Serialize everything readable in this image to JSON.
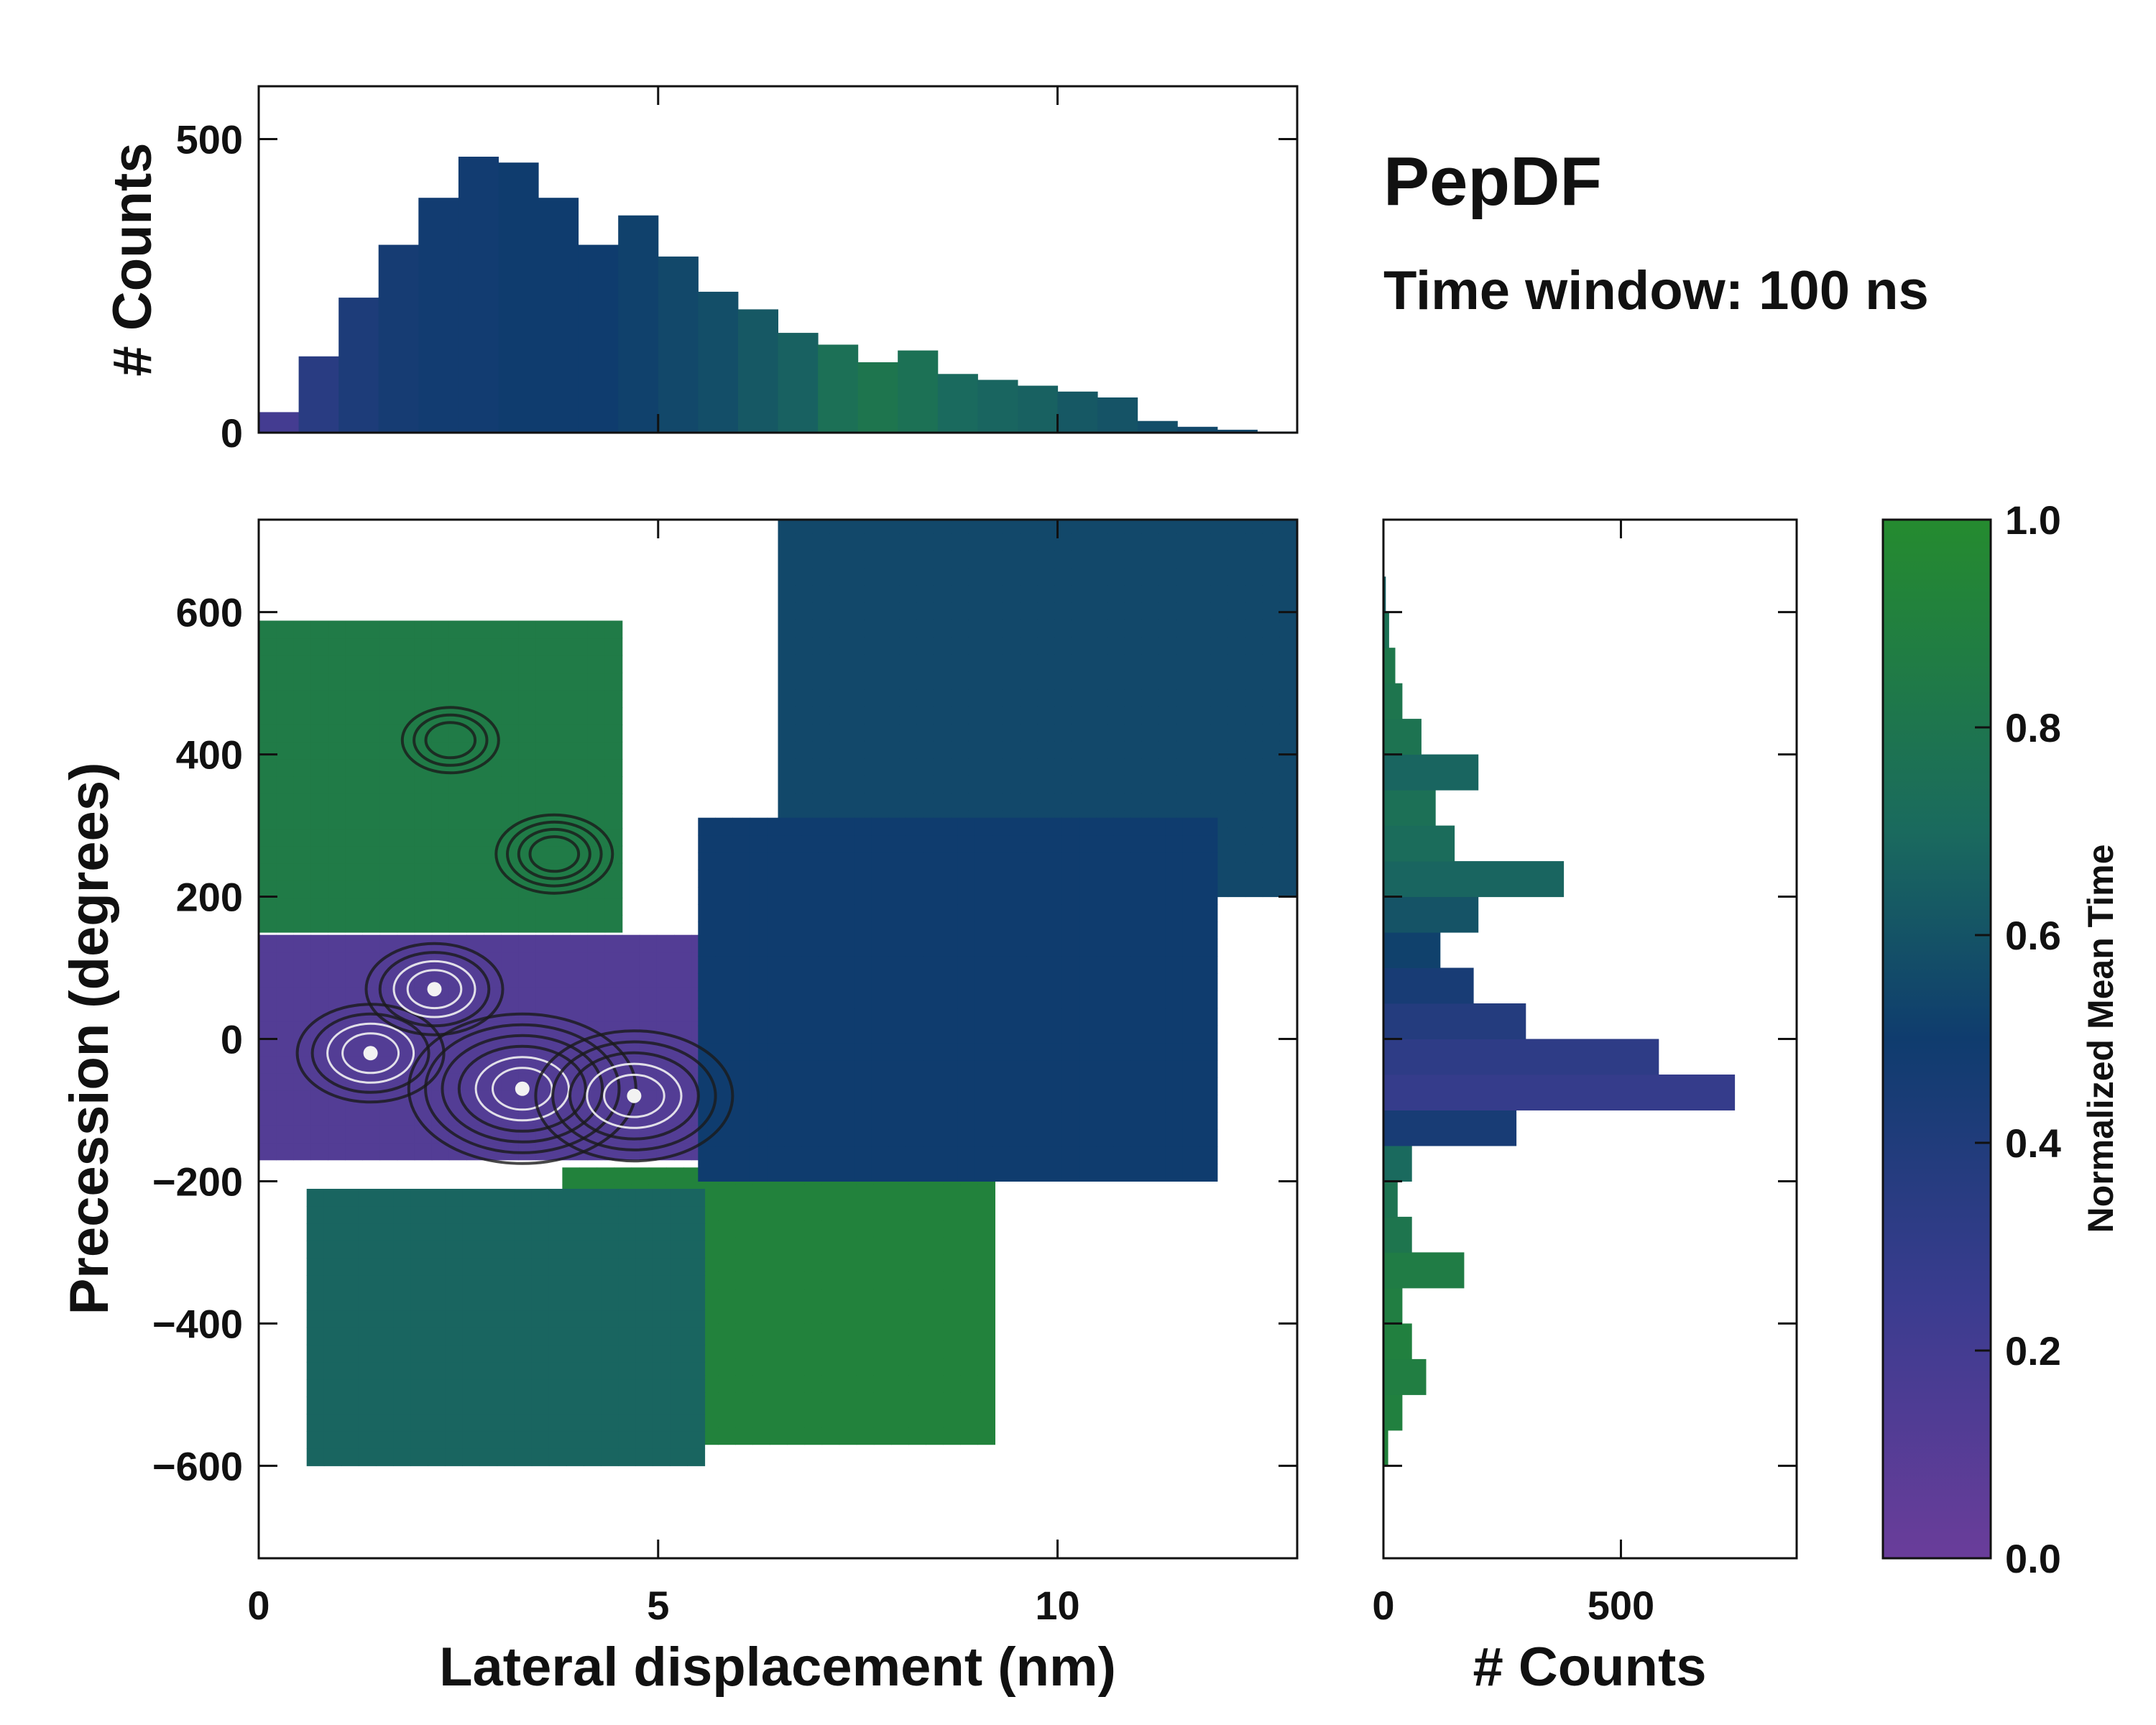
{
  "title": "PepDF",
  "subtitle": "Time window: 100 ns",
  "colors": {
    "purple": "#6a3d9a",
    "blue": "#23397e",
    "navy": "#0f3c6e",
    "teal": "#1a6a5e",
    "green": "#258b2f",
    "contour": "#1a1a1a",
    "highlight": "#f2f2f2"
  },
  "chart_data": [
    {
      "id": "main",
      "type": "heatmap",
      "xlabel": "Lateral displacement (nm)",
      "ylabel": "Precession (degrees)",
      "xlim": [
        0,
        13
      ],
      "ylim": [
        -730,
        730
      ],
      "xticks": [
        0,
        5,
        10
      ],
      "xtick_labels": [
        "0",
        "5",
        "10"
      ],
      "yticks": [
        -600,
        -400,
        -200,
        0,
        200,
        400,
        600
      ],
      "ytick_labels": [
        "−600",
        "−400",
        "−200",
        "0",
        "200",
        "400",
        "600"
      ],
      "color_meaning": "Normalized Mean Time",
      "regions": [
        {
          "name": "purple-core",
          "color_value": 0.12,
          "x": [
            0.0,
            7.0
          ],
          "y": [
            -170,
            130
          ]
        },
        {
          "name": "upper-left-green",
          "color_value": 0.85,
          "x": [
            0.0,
            4.5
          ],
          "y": [
            150,
            580
          ]
        },
        {
          "name": "lower-center-green",
          "color_value": 0.92,
          "x": [
            3.8,
            9.2
          ],
          "y": [
            -570,
            -200
          ]
        },
        {
          "name": "lower-left-teal",
          "color_value": 0.68,
          "x": [
            0.6,
            5.5
          ],
          "y": [
            -600,
            -220
          ]
        },
        {
          "name": "upper-right-navy",
          "color_value": 0.55,
          "x": [
            6.5,
            13.0
          ],
          "y": [
            200,
            720
          ]
        },
        {
          "name": "center-right-navy",
          "color_value": 0.5,
          "x": [
            5.5,
            12.0
          ],
          "y": [
            -200,
            300
          ]
        }
      ],
      "density_peaks": [
        {
          "x": 3.3,
          "y": -70,
          "level": 1.0
        },
        {
          "x": 4.7,
          "y": -80,
          "level": 0.85
        },
        {
          "x": 1.4,
          "y": -20,
          "level": 0.6
        },
        {
          "x": 2.2,
          "y": 70,
          "level": 0.55
        },
        {
          "x": 3.7,
          "y": 260,
          "level": 0.45
        },
        {
          "x": 2.4,
          "y": 420,
          "level": 0.35
        }
      ]
    },
    {
      "id": "top-histogram",
      "type": "bar",
      "xlabel": "",
      "ylabel": "# Counts",
      "xlim": [
        0,
        13
      ],
      "ylim": [
        0,
        590
      ],
      "yticks": [
        0,
        500
      ],
      "ytick_labels": [
        "0",
        "500"
      ],
      "bin_centers": [
        0.25,
        0.75,
        1.25,
        1.75,
        2.25,
        2.75,
        3.25,
        3.75,
        4.25,
        4.75,
        5.25,
        5.75,
        6.25,
        6.75,
        7.25,
        7.75,
        8.25,
        8.75,
        9.25,
        9.75,
        10.25,
        10.75,
        11.25,
        11.75,
        12.25,
        12.75
      ],
      "values": [
        35,
        130,
        230,
        320,
        400,
        470,
        460,
        400,
        320,
        370,
        300,
        240,
        210,
        170,
        150,
        120,
        140,
        100,
        90,
        80,
        70,
        60,
        20,
        10,
        5,
        2
      ],
      "color_values": [
        0.2,
        0.35,
        0.42,
        0.46,
        0.48,
        0.48,
        0.5,
        0.5,
        0.5,
        0.52,
        0.55,
        0.58,
        0.62,
        0.66,
        0.75,
        0.8,
        0.76,
        0.7,
        0.68,
        0.66,
        0.62,
        0.6,
        0.58,
        0.55,
        0.55,
        0.55
      ]
    },
    {
      "id": "right-histogram",
      "type": "bar",
      "orientation": "horizontal",
      "xlabel": "# Counts",
      "ylabel": "",
      "xlim": [
        0,
        870
      ],
      "xticks": [
        0,
        500
      ],
      "xtick_labels": [
        "0",
        "500"
      ],
      "ylim": [
        -730,
        730
      ],
      "bin_centers": [
        -575,
        -525,
        -475,
        -425,
        -375,
        -325,
        -275,
        -225,
        -175,
        -125,
        -75,
        -25,
        25,
        75,
        125,
        175,
        225,
        275,
        325,
        375,
        425,
        475,
        525,
        575,
        625,
        675
      ],
      "values": [
        10,
        40,
        90,
        60,
        40,
        170,
        60,
        30,
        60,
        280,
        740,
        580,
        300,
        190,
        120,
        200,
        380,
        150,
        110,
        200,
        80,
        40,
        25,
        12,
        5,
        2
      ],
      "color_values": [
        0.92,
        0.9,
        0.88,
        0.9,
        0.88,
        0.86,
        0.8,
        0.78,
        0.7,
        0.45,
        0.28,
        0.32,
        0.38,
        0.45,
        0.52,
        0.6,
        0.68,
        0.72,
        0.75,
        0.68,
        0.78,
        0.8,
        0.82,
        0.76,
        0.65,
        0.55
      ]
    },
    {
      "id": "colorbar",
      "type": "colorbar",
      "label": "Normalized Mean Time",
      "range": [
        0,
        1
      ],
      "ticks": [
        0,
        0.2,
        0.4,
        0.6,
        0.8,
        1.0
      ],
      "tick_labels": [
        "0.0",
        "0.2",
        "0.4",
        "0.6",
        "0.8",
        "1.0"
      ],
      "colormap": [
        {
          "v": 0.0,
          "color": "#6a3d9a"
        },
        {
          "v": 0.25,
          "color": "#3a3c8f"
        },
        {
          "v": 0.5,
          "color": "#0f3c6e"
        },
        {
          "v": 0.7,
          "color": "#1a6a5e"
        },
        {
          "v": 1.0,
          "color": "#258b2f"
        }
      ]
    }
  ]
}
